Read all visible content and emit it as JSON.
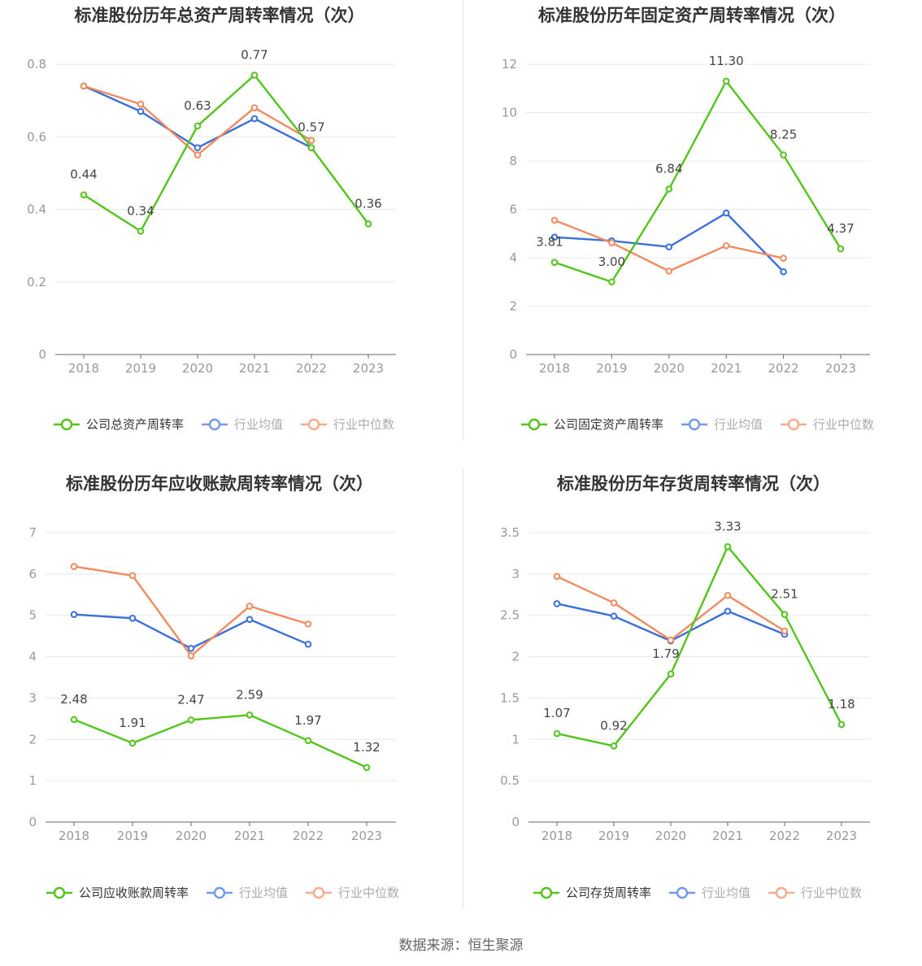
{
  "source": "数据来源：恒生聚源",
  "colors": {
    "company": "#52c41a",
    "avg": "#3a6fdc",
    "median": "#f28a5f",
    "axis": "#999999",
    "grid": "#e8e8e8",
    "label": "#444444",
    "title": "#333333"
  },
  "chart_data": [
    {
      "type": "line",
      "title": "标准股份历年总资产周转率情况（次）",
      "categories": [
        "2018",
        "2019",
        "2020",
        "2021",
        "2022",
        "2023"
      ],
      "ylim": [
        0,
        0.8
      ],
      "yticks": [
        "0",
        "0.2",
        "0.4",
        "0.6",
        "0.8"
      ],
      "grid": true,
      "legend": "bottom",
      "series": [
        {
          "name": "公司总资产周转率",
          "role": "company",
          "values": [
            0.44,
            0.34,
            0.63,
            0.77,
            0.57,
            0.36
          ],
          "labels": [
            "0.44",
            "0.34",
            "0.63",
            "0.77",
            "0.57",
            "0.36"
          ]
        },
        {
          "name": "行业均值",
          "role": "avg",
          "values": [
            0.74,
            0.67,
            0.57,
            0.65,
            0.57,
            null
          ]
        },
        {
          "name": "行业中位数",
          "role": "median",
          "values": [
            0.74,
            0.69,
            0.55,
            0.68,
            0.59,
            null
          ]
        }
      ]
    },
    {
      "type": "line",
      "title": "标准股份历年固定资产周转率情况（次）",
      "categories": [
        "2018",
        "2019",
        "2020",
        "2021",
        "2022",
        "2023"
      ],
      "ylim": [
        0,
        12
      ],
      "yticks": [
        "0",
        "2",
        "4",
        "6",
        "8",
        "10",
        "12"
      ],
      "grid": true,
      "legend": "bottom",
      "series": [
        {
          "name": "公司固定资产周转率",
          "role": "company",
          "values": [
            3.81,
            3.0,
            6.84,
            11.3,
            8.25,
            4.37
          ],
          "labels": [
            "3.81",
            "3.00",
            "6.84",
            "11.30",
            "8.25",
            "4.37"
          ]
        },
        {
          "name": "行业均值",
          "role": "avg",
          "values": [
            4.85,
            4.7,
            4.45,
            5.85,
            3.42,
            null
          ]
        },
        {
          "name": "行业中位数",
          "role": "median",
          "values": [
            5.55,
            4.62,
            3.45,
            4.5,
            3.98,
            null
          ]
        }
      ]
    },
    {
      "type": "line",
      "title": "标准股份历年应收账款周转率情况（次）",
      "categories": [
        "2018",
        "2019",
        "2020",
        "2021",
        "2022",
        "2023"
      ],
      "ylim": [
        0,
        7
      ],
      "yticks": [
        "0",
        "1",
        "2",
        "3",
        "4",
        "5",
        "6",
        "7"
      ],
      "grid": true,
      "legend": "bottom",
      "series": [
        {
          "name": "公司应收账款周转率",
          "role": "company",
          "values": [
            2.48,
            1.91,
            2.47,
            2.59,
            1.97,
            1.32
          ],
          "labels": [
            "2.48",
            "1.91",
            "2.47",
            "2.59",
            "1.97",
            "1.32"
          ]
        },
        {
          "name": "行业均值",
          "role": "avg",
          "values": [
            5.02,
            4.93,
            4.2,
            4.9,
            4.3,
            null
          ]
        },
        {
          "name": "行业中位数",
          "role": "median",
          "values": [
            6.18,
            5.96,
            4.02,
            5.22,
            4.79,
            null
          ]
        }
      ]
    },
    {
      "type": "line",
      "title": "标准股份历年存货周转率情况（次）",
      "categories": [
        "2018",
        "2019",
        "2020",
        "2021",
        "2022",
        "2023"
      ],
      "ylim": [
        0,
        3.5
      ],
      "yticks": [
        "0",
        "0.5",
        "1",
        "1.5",
        "2",
        "2.5",
        "3",
        "3.5"
      ],
      "grid": true,
      "legend": "bottom",
      "series": [
        {
          "name": "公司存货周转率",
          "role": "company",
          "values": [
            1.07,
            0.92,
            1.79,
            3.33,
            2.51,
            1.18
          ],
          "labels": [
            "1.07",
            "0.92",
            "1.79",
            "3.33",
            "2.51",
            "1.18"
          ]
        },
        {
          "name": "行业均值",
          "role": "avg",
          "values": [
            2.64,
            2.49,
            2.19,
            2.55,
            2.27,
            null
          ]
        },
        {
          "name": "行业中位数",
          "role": "median",
          "values": [
            2.97,
            2.65,
            2.2,
            2.74,
            2.31,
            null
          ]
        }
      ]
    }
  ]
}
